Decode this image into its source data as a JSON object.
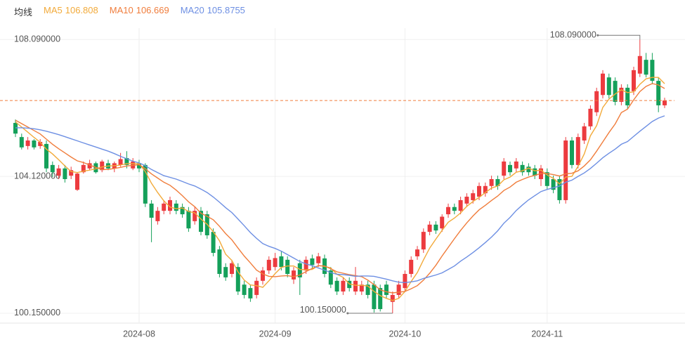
{
  "chart_data": {
    "type": "candlestick",
    "legend_title": "均线",
    "categories": [
      null,
      null,
      null,
      null,
      null,
      null,
      null,
      null,
      null,
      null,
      null,
      null,
      null,
      null,
      null,
      null,
      null,
      null,
      null,
      null,
      "2024-08",
      null,
      null,
      null,
      null,
      null,
      null,
      null,
      null,
      null,
      null,
      null,
      null,
      null,
      null,
      null,
      null,
      null,
      null,
      null,
      null,
      null,
      "2024-09",
      null,
      null,
      null,
      null,
      null,
      null,
      null,
      null,
      null,
      null,
      null,
      null,
      null,
      null,
      null,
      null,
      null,
      null,
      null,
      null,
      "2024-10",
      null,
      null,
      null,
      null,
      null,
      null,
      null,
      null,
      null,
      null,
      null,
      null,
      null,
      null,
      null,
      null,
      null,
      null,
      null,
      null,
      null,
      null,
      "2024-11",
      null,
      null,
      null,
      null,
      null,
      null,
      null,
      null,
      null,
      null,
      null,
      null,
      null,
      null,
      null,
      null,
      null,
      null,
      null
    ],
    "open": [
      105.67,
      105.26,
      105.0,
      105.16,
      105.0,
      105.06,
      104.45,
      104.14,
      104.35,
      104.14,
      103.73,
      104.24,
      104.35,
      104.5,
      104.3,
      104.5,
      104.35,
      104.45,
      104.65,
      104.35,
      104.5,
      104.45,
      103.33,
      102.82,
      103.12,
      103.12,
      103.33,
      103.23,
      103.12,
      102.82,
      103.12,
      103.02,
      102.51,
      102.0,
      101.49,
      101.29,
      101.49,
      100.98,
      100.88,
      100.68,
      101.09,
      101.39,
      101.49,
      101.8,
      101.7,
      101.13,
      101.6,
      101.39,
      101.74,
      101.6,
      101.74,
      101.39,
      101.09,
      100.78,
      101.09,
      100.78,
      100.78,
      100.98,
      100.98,
      100.88,
      100.98,
      100.48,
      100.68,
      100.88,
      101.29,
      101.8,
      102.0,
      102.51,
      102.72,
      102.61,
      103.02,
      103.23,
      103.12,
      103.33,
      103.43,
      103.53,
      103.63,
      103.84,
      104.04,
      104.14,
      104.45,
      104.35,
      104.45,
      104.4,
      104.35,
      104.04,
      104.24,
      104.04,
      104.04,
      103.43,
      105.16,
      104.45,
      105.16,
      105.57,
      105.98,
      106.48,
      106.99,
      106.89,
      106.28,
      106.69,
      106.59,
      107.1,
      107.5,
      107.5,
      106.89,
      106.18
    ],
    "high": [
      105.77,
      105.36,
      105.26,
      105.2,
      105.2,
      105.16,
      104.55,
      104.45,
      104.45,
      104.4,
      104.24,
      104.55,
      104.6,
      104.55,
      104.6,
      104.6,
      104.55,
      104.8,
      104.85,
      104.65,
      104.6,
      104.5,
      103.43,
      103.23,
      103.43,
      103.53,
      103.43,
      103.33,
      103.23,
      103.23,
      103.23,
      103.12,
      102.61,
      102.1,
      101.6,
      101.7,
      101.6,
      101.09,
      100.98,
      101.19,
      101.49,
      101.8,
      101.9,
      101.95,
      101.8,
      101.49,
      101.7,
      101.8,
      101.85,
      101.9,
      101.85,
      101.49,
      101.19,
      101.19,
      101.19,
      101.49,
      101.09,
      101.09,
      101.09,
      100.98,
      101.09,
      100.78,
      101.09,
      101.39,
      101.8,
      102.1,
      102.61,
      102.82,
      102.82,
      103.02,
      103.33,
      103.33,
      103.53,
      103.63,
      103.73,
      103.94,
      103.94,
      104.14,
      104.14,
      104.65,
      104.55,
      104.65,
      104.55,
      104.5,
      104.45,
      104.45,
      104.35,
      104.14,
      104.14,
      105.26,
      105.26,
      105.36,
      105.67,
      106.18,
      106.69,
      107.2,
      107.1,
      106.99,
      106.79,
      106.79,
      107.3,
      108.09,
      107.7,
      107.7,
      106.99,
      106.4
    ],
    "low": [
      105.26,
      104.9,
      104.9,
      104.9,
      104.92,
      104.24,
      104.1,
      104.04,
      103.94,
      104.04,
      103.7,
      104.2,
      104.3,
      104.2,
      104.24,
      104.3,
      104.24,
      104.4,
      104.35,
      104.3,
      104.24,
      103.23,
      102.21,
      102.72,
      103.02,
      103.02,
      103.02,
      102.92,
      102.51,
      102.72,
      102.41,
      102.31,
      101.8,
      101.19,
      101.09,
      101.19,
      100.68,
      100.58,
      100.48,
      100.58,
      100.98,
      101.29,
      101.39,
      101.39,
      101.19,
      101.0,
      100.68,
      101.29,
      101.45,
      101.49,
      101.19,
      100.88,
      100.68,
      100.68,
      100.78,
      100.68,
      100.68,
      100.58,
      100.17,
      100.2,
      100.58,
      100.15,
      100.58,
      100.78,
      101.19,
      101.7,
      101.9,
      102.41,
      102.45,
      102.51,
      102.92,
      103.02,
      103.02,
      103.23,
      103.33,
      103.43,
      103.53,
      103.73,
      103.73,
      104.04,
      104.14,
      104.24,
      104.14,
      104.14,
      104.04,
      103.84,
      103.73,
      103.63,
      103.33,
      103.33,
      104.35,
      104.35,
      105.06,
      105.47,
      105.87,
      106.38,
      106.38,
      106.18,
      106.18,
      106.08,
      106.48,
      107.0,
      106.99,
      106.79,
      105.98,
      106.1
    ],
    "close": [
      105.36,
      104.96,
      105.16,
      104.96,
      105.12,
      104.35,
      104.24,
      104.35,
      104.04,
      104.3,
      104.2,
      104.45,
      104.5,
      104.24,
      104.55,
      104.35,
      104.5,
      104.62,
      104.45,
      104.55,
      104.35,
      103.33,
      102.92,
      103.12,
      103.33,
      103.43,
      103.12,
      103.02,
      102.61,
      103.12,
      102.51,
      102.41,
      101.9,
      101.29,
      101.19,
      101.6,
      100.78,
      100.68,
      100.58,
      101.09,
      101.39,
      101.7,
      101.75,
      101.49,
      101.29,
      101.39,
      101.19,
      101.7,
      101.55,
      101.8,
      101.29,
      100.98,
      100.78,
      101.09,
      100.88,
      101.09,
      100.98,
      100.68,
      100.27,
      100.27,
      100.68,
      100.68,
      100.98,
      101.29,
      101.7,
      102.0,
      102.51,
      102.72,
      102.55,
      102.95,
      103.23,
      103.12,
      103.43,
      103.53,
      103.63,
      103.84,
      103.84,
      104.04,
      103.84,
      104.55,
      104.24,
      104.55,
      104.24,
      104.24,
      104.14,
      104.35,
      103.84,
      103.73,
      103.43,
      105.16,
      104.45,
      105.26,
      105.57,
      106.08,
      106.59,
      107.1,
      106.48,
      106.28,
      106.69,
      106.18,
      107.2,
      107.61,
      107.07,
      106.89,
      106.18,
      106.32
    ],
    "up_color": "#ec3b3f",
    "down_color": "#14a05a",
    "series": [
      {
        "name": "MA5",
        "color": "#f2aa3a",
        "values": [
          105.7,
          105.55,
          105.4,
          105.25,
          105.11,
          104.91,
          104.77,
          104.6,
          104.42,
          104.26,
          104.23,
          104.27,
          104.3,
          104.34,
          104.39,
          104.42,
          104.43,
          104.45,
          104.49,
          104.49,
          104.49,
          104.26,
          103.92,
          103.65,
          103.41,
          103.23,
          103.18,
          103.2,
          103.1,
          103.06,
          102.88,
          102.73,
          102.51,
          102.25,
          101.86,
          101.68,
          101.35,
          101.11,
          100.97,
          100.95,
          100.9,
          101.09,
          101.3,
          101.48,
          101.52,
          101.52,
          101.42,
          101.41,
          101.42,
          101.53,
          101.51,
          101.46,
          101.28,
          101.19,
          101.0,
          100.96,
          100.96,
          100.94,
          100.78,
          100.66,
          100.58,
          100.52,
          100.58,
          100.78,
          101.07,
          101.33,
          101.7,
          102.04,
          102.3,
          102.55,
          102.79,
          102.91,
          103.06,
          103.25,
          103.39,
          103.51,
          103.65,
          103.78,
          103.84,
          104.02,
          104.1,
          104.24,
          104.28,
          104.36,
          104.28,
          104.3,
          104.16,
          104.06,
          103.9,
          104.1,
          104.12,
          104.41,
          104.77,
          105.3,
          105.59,
          106.12,
          106.36,
          106.51,
          106.63,
          106.55,
          106.57,
          106.79,
          106.95,
          106.99,
          106.99,
          106.808
        ]
      },
      {
        "name": "MA10",
        "color": "#f07d3c",
        "values": [
          105.75,
          105.65,
          105.55,
          105.45,
          105.35,
          105.2,
          105.05,
          104.92,
          104.8,
          104.68,
          104.57,
          104.52,
          104.45,
          104.38,
          104.32,
          104.32,
          104.35,
          104.38,
          104.42,
          104.44,
          104.46,
          104.34,
          104.19,
          104.07,
          103.95,
          103.86,
          103.72,
          103.56,
          103.38,
          103.24,
          103.05,
          102.96,
          102.86,
          102.67,
          102.46,
          102.28,
          102.04,
          101.81,
          101.61,
          101.4,
          101.29,
          101.22,
          101.21,
          101.23,
          101.24,
          101.21,
          101.26,
          101.36,
          101.45,
          101.53,
          101.52,
          101.44,
          101.35,
          101.31,
          101.27,
          101.24,
          101.21,
          101.11,
          100.98,
          100.83,
          100.77,
          100.74,
          100.76,
          100.78,
          100.86,
          100.95,
          101.11,
          101.31,
          101.54,
          101.81,
          102.06,
          102.31,
          102.55,
          102.77,
          102.97,
          103.15,
          103.28,
          103.42,
          103.55,
          103.71,
          103.81,
          103.95,
          104.03,
          104.1,
          104.15,
          104.2,
          104.2,
          104.17,
          104.13,
          104.19,
          104.21,
          104.28,
          104.42,
          104.6,
          104.85,
          105.12,
          105.39,
          105.64,
          105.97,
          106.07,
          106.34,
          106.58,
          106.73,
          106.81,
          106.77,
          106.669
        ]
      },
      {
        "name": "MA20",
        "color": "#6d8fe3",
        "values": [
          105.53,
          105.53,
          105.52,
          105.5,
          105.47,
          105.43,
          105.38,
          105.33,
          105.27,
          105.21,
          105.15,
          105.09,
          105.03,
          104.97,
          104.91,
          104.85,
          104.78,
          104.7,
          104.63,
          104.56,
          104.51,
          104.43,
          104.32,
          104.23,
          104.14,
          104.09,
          104.04,
          103.97,
          103.9,
          103.84,
          103.75,
          103.65,
          103.52,
          103.37,
          103.21,
          103.07,
          102.88,
          102.69,
          102.49,
          102.32,
          102.17,
          102.09,
          102.03,
          101.95,
          101.85,
          101.75,
          101.65,
          101.58,
          101.53,
          101.46,
          101.4,
          101.33,
          101.28,
          101.27,
          101.25,
          101.22,
          101.23,
          101.23,
          101.22,
          101.18,
          101.14,
          101.09,
          101.05,
          101.04,
          101.06,
          101.09,
          101.16,
          101.21,
          101.26,
          101.32,
          101.42,
          101.52,
          101.66,
          101.78,
          101.91,
          102.05,
          102.2,
          102.36,
          102.54,
          102.76,
          102.93,
          103.13,
          103.29,
          103.44,
          103.56,
          103.68,
          103.74,
          103.79,
          103.84,
          103.95,
          104.01,
          104.12,
          104.22,
          104.35,
          104.5,
          104.66,
          104.79,
          104.91,
          105.05,
          105.13,
          105.28,
          105.43,
          105.57,
          105.71,
          105.81,
          105.8755
        ]
      }
    ],
    "ylim": [
      99.66,
      108.42
    ],
    "yticks": [
      {
        "value": 100.15,
        "label": "100.150000"
      },
      {
        "value": 104.12,
        "label": "104.120000"
      },
      {
        "value": 108.09,
        "label": "108.090000"
      }
    ],
    "grid": true,
    "last_line": true,
    "last_line_color": "#f07d3c",
    "max_label": "108.090000",
    "min_label": "100.150000"
  }
}
